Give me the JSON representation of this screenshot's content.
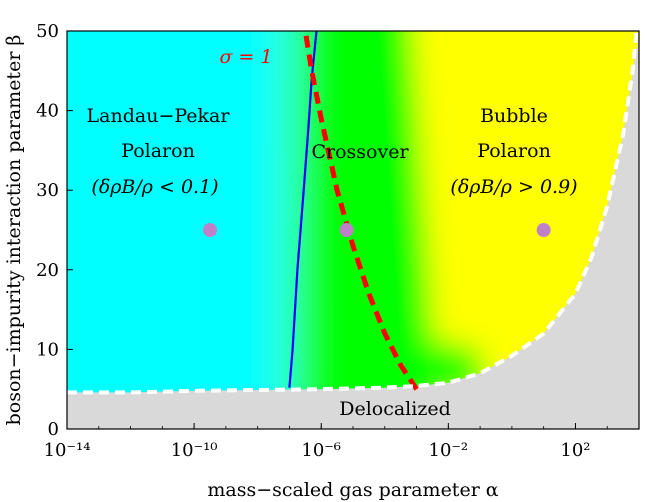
{
  "chart_data": {
    "type": "heatmap",
    "title": "",
    "xlabel": "mass−scaled gas parameter α",
    "ylabel": "boson−impurity interaction parameter β",
    "x_scale": "log10",
    "xlim_log10": [
      -14,
      4
    ],
    "ylim": [
      0,
      50
    ],
    "x_ticks": [
      {
        "exp": -14,
        "label": "10⁻¹⁴"
      },
      {
        "exp": -10,
        "label": "10⁻¹⁰"
      },
      {
        "exp": -6,
        "label": "10⁻⁶"
      },
      {
        "exp": -2,
        "label": "10⁻²"
      },
      {
        "exp": 2,
        "label": "10²"
      }
    ],
    "y_ticks": [
      {
        "value": 0,
        "label": "0"
      },
      {
        "value": 10,
        "label": "10"
      },
      {
        "value": 20,
        "label": "20"
      },
      {
        "value": 30,
        "label": "30"
      },
      {
        "value": 40,
        "label": "40"
      },
      {
        "value": 50,
        "label": "50"
      }
    ],
    "regions": [
      {
        "name": "Landau−Pekar",
        "line2": "Polaron",
        "line3": "(δρB/ρ < 0.1)",
        "color": "#00ffff",
        "log_alpha": -9.8,
        "beta": 39
      },
      {
        "name": "Crossover",
        "color": "#00ff00",
        "log_alpha": -5.0,
        "beta": 33
      },
      {
        "name": "Bubble",
        "line2": "Polaron",
        "line3": "(δρB/ρ > 0.9)",
        "color": "#ffff00",
        "log_alpha": 1.1,
        "beta": 39
      },
      {
        "name": "Delocalized",
        "color": "#d9d9d9",
        "log_alpha": -3.3,
        "beta": 2
      }
    ],
    "sample_points": [
      {
        "log_alpha": -9.5,
        "beta": 25
      },
      {
        "log_alpha": -5.2,
        "beta": 25
      },
      {
        "log_alpha": 1.0,
        "beta": 25
      }
    ],
    "sample_point_color": "#c080c8",
    "delocalization_boundary": {
      "style": "white dashed",
      "log_alpha": [
        -14,
        -12,
        -10,
        -8,
        -6,
        -5,
        -4,
        -3,
        -2,
        -1,
        0,
        1,
        2,
        2.5,
        3,
        3.5,
        3.8
      ],
      "beta": [
        4.6,
        4.6,
        4.8,
        4.9,
        5.0,
        5.1,
        5.2,
        5.4,
        5.8,
        7.0,
        9.2,
        12.0,
        17.0,
        21.5,
        28.0,
        37.0,
        45.0
      ]
    },
    "blue_line": {
      "label": "",
      "color": "#0000ff",
      "log_alpha": [
        -7.0,
        -6.9,
        -6.75,
        -6.55,
        -6.4,
        -6.3,
        -6.2,
        -6.15
      ],
      "beta": [
        5.2,
        10.0,
        20.0,
        30.0,
        38.0,
        44.0,
        48.0,
        50.0
      ]
    },
    "sigma_line": {
      "label": "σ = 1",
      "color": "#ff0000",
      "style": "dashed",
      "log_alpha": [
        -3.0,
        -3.5,
        -4.0,
        -4.5,
        -5.0,
        -5.5,
        -6.0,
        -6.3,
        -6.5
      ],
      "beta": [
        5.0,
        8.0,
        12.0,
        17.0,
        23.0,
        30.0,
        39.0,
        45.0,
        50.0
      ]
    },
    "legend": "none",
    "grid": false
  }
}
